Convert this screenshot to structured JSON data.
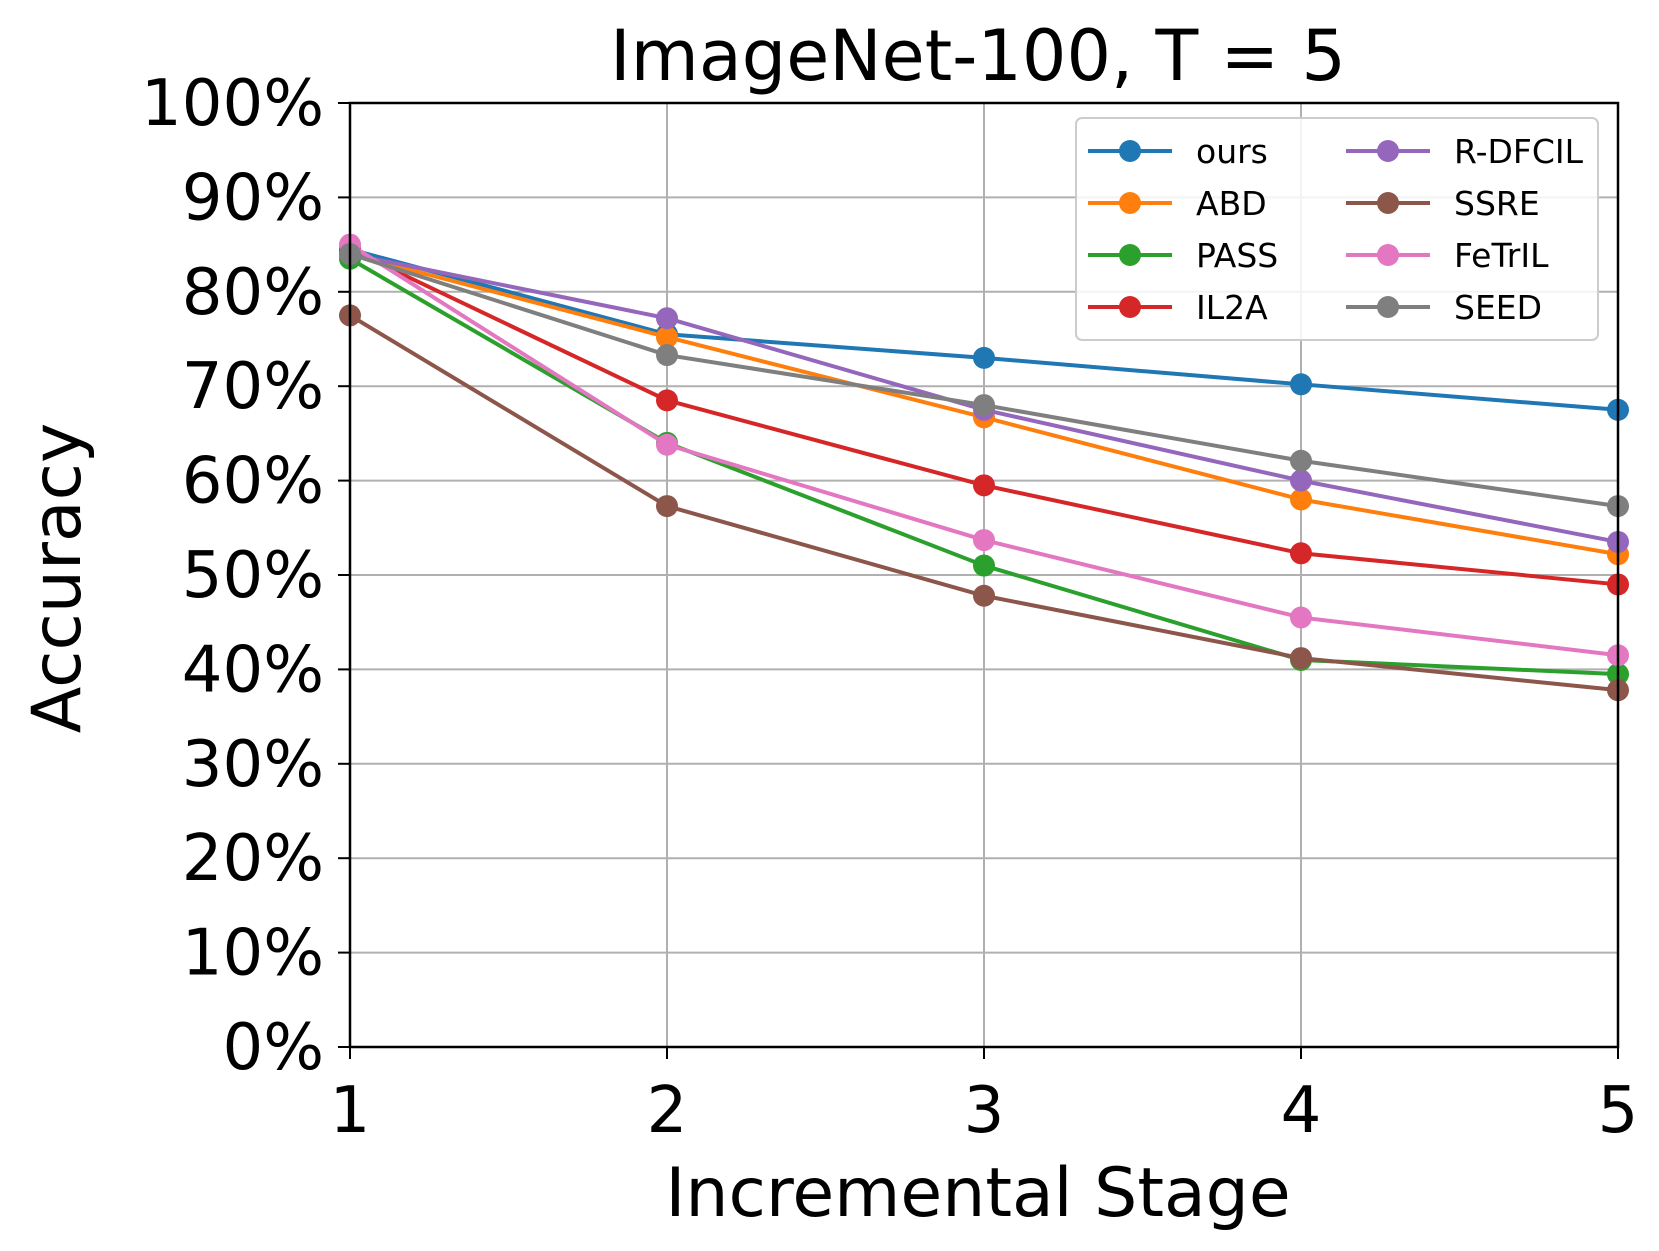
{
  "chart_data": {
    "type": "line",
    "title": "ImageNet-100, T = 5",
    "xlabel": "Incremental Stage",
    "ylabel": "Accuracy",
    "x": [
      1,
      2,
      3,
      4,
      5
    ],
    "xlim": [
      1,
      5
    ],
    "ylim": [
      0,
      100
    ],
    "y_ticks": [
      "0%",
      "10%",
      "20%",
      "30%",
      "40%",
      "50%",
      "60%",
      "70%",
      "80%",
      "90%",
      "100%"
    ],
    "x_ticks": [
      "1",
      "2",
      "3",
      "4",
      "5"
    ],
    "grid": true,
    "legend_position": "top-right",
    "legend_columns": 2,
    "series": [
      {
        "name": "ours",
        "color": "#1f77b4",
        "values": [
          84.5,
          75.5,
          73.0,
          70.2,
          67.5
        ]
      },
      {
        "name": "ABD",
        "color": "#ff7f0e",
        "values": [
          84.0,
          75.2,
          66.7,
          58.0,
          52.2
        ]
      },
      {
        "name": "PASS",
        "color": "#2ca02c",
        "values": [
          83.5,
          64.0,
          51.0,
          41.0,
          39.5
        ]
      },
      {
        "name": "IL2A",
        "color": "#d62728",
        "values": [
          84.5,
          68.5,
          59.5,
          52.3,
          49.0
        ]
      },
      {
        "name": "R-DFCIL",
        "color": "#9467bd",
        "values": [
          84.0,
          77.2,
          67.5,
          60.0,
          53.5
        ]
      },
      {
        "name": "SSRE",
        "color": "#8c564b",
        "values": [
          77.5,
          57.3,
          47.8,
          41.2,
          37.8
        ]
      },
      {
        "name": "FeTrIL",
        "color": "#e377c2",
        "values": [
          85.0,
          63.8,
          53.7,
          45.5,
          41.5
        ]
      },
      {
        "name": "SEED",
        "color": "#7f7f7f",
        "values": [
          84.0,
          73.3,
          68.0,
          62.1,
          57.3
        ]
      }
    ]
  }
}
